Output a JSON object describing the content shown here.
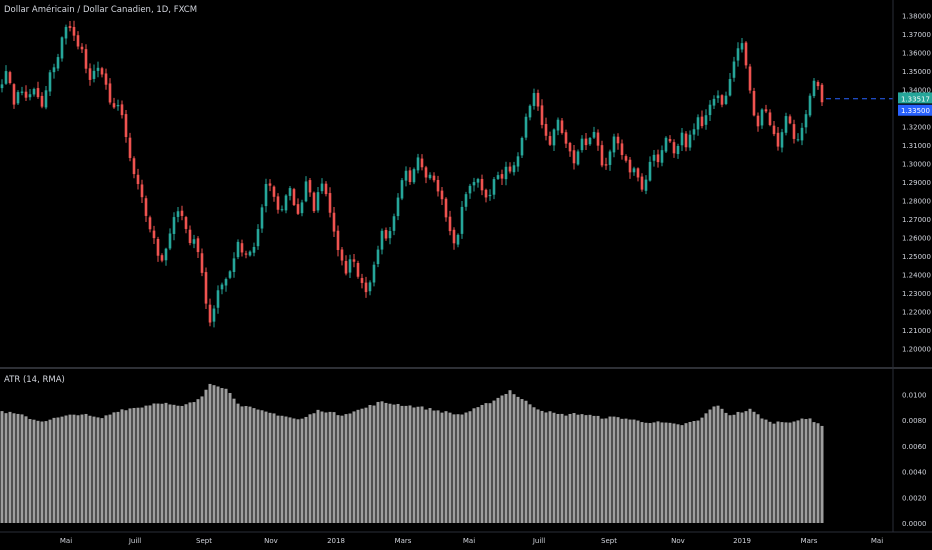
{
  "header": {
    "symbol_title": "Dollar Américain / Dollar Canadien, 1D, FXCM",
    "indicator_title": "ATR (14, RMA)"
  },
  "colors": {
    "background": "#000000",
    "up": "#26a69a",
    "down": "#ef5350",
    "atr_bar": "#9e9e9e",
    "price_line": "#2962ff",
    "last_price_badge": "#26a69a",
    "line_price_badge": "#2962ff",
    "axis_text": "#d1d4dc",
    "separator": "#5d606b"
  },
  "chart_data": [
    {
      "type": "candlestick",
      "title": "Dollar Américain / Dollar Canadien, 1D, FXCM",
      "x_tick_labels": [
        "Mai",
        "Juill",
        "Sept",
        "Nov",
        "2018",
        "Mars",
        "Mai",
        "Juill",
        "Sept",
        "Nov",
        "2019",
        "Mars",
        "Mai"
      ],
      "y_tick_labels": [
        "1.38000",
        "1.37000",
        "1.36000",
        "1.35000",
        "1.34000",
        "1.33000",
        "1.32000",
        "1.31000",
        "1.30000",
        "1.29000",
        "1.28000",
        "1.27000",
        "1.26000",
        "1.25000",
        "1.24000",
        "1.23000",
        "1.22000",
        "1.21000",
        "1.20000"
      ],
      "ylim": [
        1.195,
        1.384
      ],
      "last_price": {
        "value": 1.33517,
        "label": "1.33517"
      },
      "horizontal_line": {
        "value": 1.335,
        "label": "1.33500",
        "style": "dashed"
      },
      "close_path": [
        [
          0,
          1.343
        ],
        [
          8,
          1.35
        ],
        [
          14,
          1.333
        ],
        [
          20,
          1.34
        ],
        [
          28,
          1.335
        ],
        [
          35,
          1.34
        ],
        [
          42,
          1.33
        ],
        [
          50,
          1.348
        ],
        [
          58,
          1.358
        ],
        [
          64,
          1.372
        ],
        [
          70,
          1.375
        ],
        [
          76,
          1.365
        ],
        [
          82,
          1.36
        ],
        [
          88,
          1.345
        ],
        [
          94,
          1.35
        ],
        [
          100,
          1.35
        ],
        [
          106,
          1.342
        ],
        [
          112,
          1.328
        ],
        [
          118,
          1.33
        ],
        [
          124,
          1.325
        ],
        [
          128,
          1.305
        ],
        [
          134,
          1.295
        ],
        [
          140,
          1.288
        ],
        [
          146,
          1.272
        ],
        [
          152,
          1.262
        ],
        [
          158,
          1.25
        ],
        [
          164,
          1.245
        ],
        [
          168,
          1.26
        ],
        [
          174,
          1.272
        ],
        [
          180,
          1.275
        ],
        [
          186,
          1.265
        ],
        [
          192,
          1.255
        ],
        [
          196,
          1.26
        ],
        [
          200,
          1.248
        ],
        [
          204,
          1.235
        ],
        [
          208,
          1.215
        ],
        [
          212,
          1.212
        ],
        [
          216,
          1.228
        ],
        [
          220,
          1.235
        ],
        [
          226,
          1.238
        ],
        [
          232,
          1.245
        ],
        [
          238,
          1.258
        ],
        [
          244,
          1.25
        ],
        [
          250,
          1.252
        ],
        [
          256,
          1.258
        ],
        [
          260,
          1.268
        ],
        [
          264,
          1.285
        ],
        [
          268,
          1.29
        ],
        [
          272,
          1.285
        ],
        [
          276,
          1.278
        ],
        [
          280,
          1.272
        ],
        [
          286,
          1.282
        ],
        [
          290,
          1.285
        ],
        [
          294,
          1.278
        ],
        [
          298,
          1.272
        ],
        [
          302,
          1.28
        ],
        [
          306,
          1.29
        ],
        [
          310,
          1.285
        ],
        [
          314,
          1.275
        ],
        [
          318,
          1.285
        ],
        [
          322,
          1.288
        ],
        [
          326,
          1.282
        ],
        [
          330,
          1.275
        ],
        [
          334,
          1.262
        ],
        [
          338,
          1.255
        ],
        [
          342,
          1.248
        ],
        [
          346,
          1.242
        ],
        [
          350,
          1.25
        ],
        [
          354,
          1.245
        ],
        [
          358,
          1.24
        ],
        [
          362,
          1.235
        ],
        [
          366,
          1.232
        ],
        [
          370,
          1.236
        ],
        [
          374,
          1.245
        ],
        [
          378,
          1.255
        ],
        [
          382,
          1.262
        ],
        [
          386,
          1.258
        ],
        [
          390,
          1.262
        ],
        [
          394,
          1.27
        ],
        [
          398,
          1.28
        ],
        [
          402,
          1.29
        ],
        [
          406,
          1.297
        ],
        [
          410,
          1.292
        ],
        [
          414,
          1.298
        ],
        [
          418,
          1.305
        ],
        [
          422,
          1.3
        ],
        [
          426,
          1.292
        ],
        [
          430,
          1.295
        ],
        [
          434,
          1.29
        ],
        [
          438,
          1.285
        ],
        [
          442,
          1.28
        ],
        [
          446,
          1.272
        ],
        [
          450,
          1.262
        ],
        [
          454,
          1.258
        ],
        [
          458,
          1.262
        ],
        [
          462,
          1.275
        ],
        [
          466,
          1.285
        ],
        [
          470,
          1.288
        ],
        [
          474,
          1.292
        ],
        [
          478,
          1.29
        ],
        [
          482,
          1.285
        ],
        [
          486,
          1.28
        ],
        [
          490,
          1.285
        ],
        [
          494,
          1.29
        ],
        [
          498,
          1.295
        ],
        [
          502,
          1.29
        ],
        [
          506,
          1.298
        ],
        [
          510,
          1.295
        ],
        [
          514,
          1.3
        ],
        [
          518,
          1.305
        ],
        [
          522,
          1.315
        ],
        [
          526,
          1.325
        ],
        [
          530,
          1.333
        ],
        [
          534,
          1.337
        ],
        [
          538,
          1.33
        ],
        [
          542,
          1.32
        ],
        [
          546,
          1.315
        ],
        [
          550,
          1.312
        ],
        [
          554,
          1.32
        ],
        [
          558,
          1.322
        ],
        [
          562,
          1.318
        ],
        [
          566,
          1.31
        ],
        [
          570,
          1.305
        ],
        [
          574,
          1.302
        ],
        [
          578,
          1.305
        ],
        [
          582,
          1.312
        ],
        [
          586,
          1.308
        ],
        [
          590,
          1.312
        ],
        [
          594,
          1.316
        ],
        [
          598,
          1.31
        ],
        [
          602,
          1.3
        ],
        [
          606,
          1.298
        ],
        [
          610,
          1.305
        ],
        [
          614,
          1.315
        ],
        [
          618,
          1.312
        ],
        [
          622,
          1.305
        ],
        [
          626,
          1.3
        ],
        [
          630,
          1.295
        ],
        [
          634,
          1.298
        ],
        [
          638,
          1.292
        ],
        [
          642,
          1.285
        ],
        [
          646,
          1.292
        ],
        [
          650,
          1.3
        ],
        [
          654,
          1.305
        ],
        [
          658,
          1.302
        ],
        [
          662,
          1.308
        ],
        [
          666,
          1.312
        ],
        [
          670,
          1.31
        ],
        [
          674,
          1.305
        ],
        [
          678,
          1.308
        ],
        [
          682,
          1.315
        ],
        [
          686,
          1.31
        ],
        [
          690,
          1.315
        ],
        [
          694,
          1.32
        ],
        [
          698,
          1.325
        ],
        [
          702,
          1.32
        ],
        [
          706,
          1.325
        ],
        [
          710,
          1.33
        ],
        [
          714,
          1.335
        ],
        [
          718,
          1.338
        ],
        [
          722,
          1.332
        ],
        [
          726,
          1.338
        ],
        [
          730,
          1.345
        ],
        [
          734,
          1.355
        ],
        [
          738,
          1.362
        ],
        [
          742,
          1.365
        ],
        [
          746,
          1.352
        ],
        [
          750,
          1.34
        ],
        [
          754,
          1.325
        ],
        [
          758,
          1.322
        ],
        [
          762,
          1.33
        ],
        [
          766,
          1.328
        ],
        [
          770,
          1.322
        ],
        [
          774,
          1.315
        ],
        [
          778,
          1.31
        ],
        [
          782,
          1.318
        ],
        [
          786,
          1.325
        ],
        [
          790,
          1.322
        ],
        [
          794,
          1.315
        ],
        [
          798,
          1.312
        ],
        [
          802,
          1.318
        ],
        [
          806,
          1.325
        ],
        [
          810,
          1.335
        ],
        [
          814,
          1.344
        ],
        [
          818,
          1.34
        ],
        [
          822,
          1.335
        ]
      ]
    },
    {
      "type": "bar",
      "title": "ATR (14, RMA)",
      "y_tick_labels": [
        "0.0100",
        "0.0080",
        "0.0060",
        "0.0040",
        "0.0020",
        "0.0000"
      ],
      "ylim": [
        0,
        0.0115
      ],
      "x_tick_labels": [
        "Mai",
        "Juill",
        "Sept",
        "Nov",
        "2018",
        "Mars",
        "Mai",
        "Juill",
        "Sept",
        "Nov",
        "2019",
        "Mars",
        "Mai"
      ],
      "path": [
        [
          0,
          0.0087
        ],
        [
          20,
          0.0084
        ],
        [
          40,
          0.0079
        ],
        [
          60,
          0.0082
        ],
        [
          80,
          0.0085
        ],
        [
          100,
          0.0081
        ],
        [
          120,
          0.0088
        ],
        [
          140,
          0.009
        ],
        [
          160,
          0.0094
        ],
        [
          180,
          0.009
        ],
        [
          200,
          0.0096
        ],
        [
          210,
          0.0109
        ],
        [
          225,
          0.0105
        ],
        [
          240,
          0.0092
        ],
        [
          260,
          0.0087
        ],
        [
          280,
          0.0084
        ],
        [
          300,
          0.008
        ],
        [
          320,
          0.0088
        ],
        [
          340,
          0.0084
        ],
        [
          360,
          0.0088
        ],
        [
          380,
          0.0094
        ],
        [
          400,
          0.0092
        ],
        [
          420,
          0.009
        ],
        [
          440,
          0.0087
        ],
        [
          460,
          0.0084
        ],
        [
          480,
          0.009
        ],
        [
          500,
          0.0098
        ],
        [
          510,
          0.0103
        ],
        [
          520,
          0.0097
        ],
        [
          540,
          0.0088
        ],
        [
          560,
          0.0084
        ],
        [
          580,
          0.0085
        ],
        [
          600,
          0.0082
        ],
        [
          620,
          0.0082
        ],
        [
          640,
          0.0079
        ],
        [
          660,
          0.0078
        ],
        [
          680,
          0.0076
        ],
        [
          700,
          0.008
        ],
        [
          715,
          0.0092
        ],
        [
          730,
          0.0084
        ],
        [
          750,
          0.0088
        ],
        [
          770,
          0.0078
        ],
        [
          790,
          0.0079
        ],
        [
          810,
          0.0081
        ],
        [
          822,
          0.0076
        ]
      ]
    }
  ]
}
